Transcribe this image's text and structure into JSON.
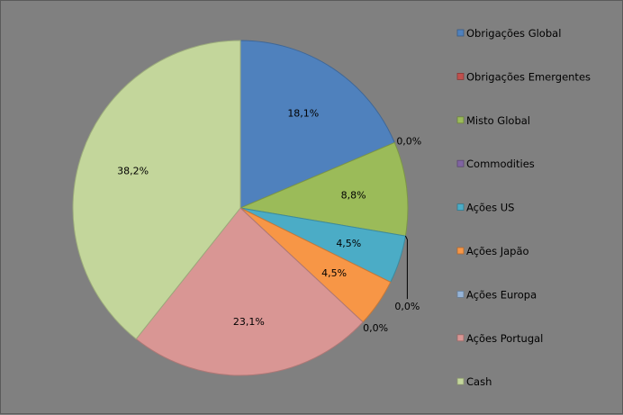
{
  "chart_data": {
    "type": "pie",
    "title": "",
    "legend_position": "right",
    "categories": [
      "Obrigações Global",
      "Obrigações Emergentes",
      "Misto Global",
      "Commodities",
      "Ações US",
      "Ações Japão",
      "Ações Europa",
      "Ações Portugal",
      "Cash"
    ],
    "values": [
      18.1,
      0.0,
      8.8,
      0.0,
      4.5,
      4.5,
      0.0,
      23.1,
      38.2
    ],
    "labels": [
      "18,1%",
      "0,0%",
      "8,8%",
      "0,0%",
      "4,5%",
      "4,5%",
      "0,0%",
      "23,1%",
      "38,2%"
    ],
    "colors": [
      "#4f81bd",
      "#c0504d",
      "#9bbb59",
      "#8064a2",
      "#4bacc6",
      "#f79646",
      "#95b3d7",
      "#d99694",
      "#c3d69b"
    ]
  }
}
